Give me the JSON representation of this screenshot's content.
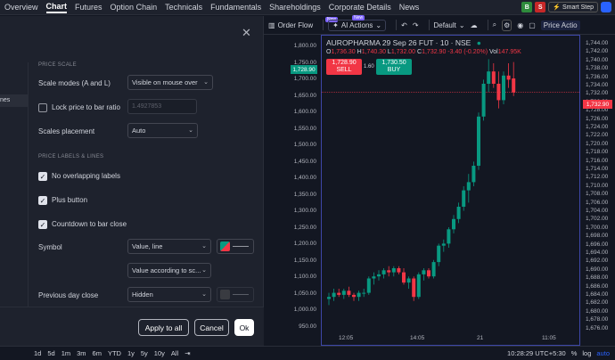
{
  "topnav": {
    "tabs": [
      "Overview",
      "Chart",
      "Futures",
      "Option Chain",
      "Technicals",
      "Fundamentals",
      "Shareholdings",
      "Corporate Details",
      "News"
    ],
    "active": "Chart",
    "buy_label": "B",
    "sell_label": "S",
    "smartstep_label": "Smart Step"
  },
  "toolbar": {
    "order_flow": "Order Flow",
    "ai_actions": "AI Actions",
    "new_badge": "New",
    "layout": "Default",
    "price_action": "Price Actio"
  },
  "dialog": {
    "sidebar_selected": "nes",
    "section_price_scale": "PRICE SCALE",
    "scale_modes_label": "Scale modes (A and L)",
    "scale_modes_value": "Visible on mouse over",
    "lock_ratio_label": "Lock price to bar ratio",
    "lock_ratio_value": "1.4927853",
    "scales_placement_label": "Scales placement",
    "scales_placement_value": "Auto",
    "section_labels": "PRICE LABELS & LINES",
    "no_overlap_label": "No overlapping labels",
    "plus_button_label": "Plus button",
    "countdown_label": "Countdown to bar close",
    "symbol_label": "Symbol",
    "symbol_value": "Value, line",
    "symbol_value2": "Value according to sc...",
    "prev_close_label": "Previous day close",
    "prev_close_value": "Hidden",
    "apply_all": "Apply to all",
    "cancel": "Cancel",
    "ok": "Ok"
  },
  "chart": {
    "symbol_title": "AUROPHARMA 29 Sep 26 FUT · 10 · NSE",
    "ohlc": {
      "o_label": "O",
      "o": "1,736.30",
      "h_label": "H",
      "h": "1,740.30",
      "l_label": "L",
      "l": "1,732.00",
      "c_label": "C",
      "c": "1,732.90",
      "change": "-3.40 (-0.20%)",
      "vol_label": "Vol",
      "vol": "147.95K"
    },
    "sell_price": "1,728.90",
    "sell_label": "SELL",
    "buy_price": "1,730.50",
    "buy_label": "BUY",
    "spread": "1.60",
    "left_price_tag": "1,728.90",
    "right_price_tag": "1,732.90",
    "left_ticks": [
      "1,800.00",
      "1,750.00",
      "1,700.00",
      "1,650.00",
      "1,600.00",
      "1,550.00",
      "1,500.00",
      "1,450.00",
      "1,400.00",
      "1,350.00",
      "1,300.00",
      "1,250.00",
      "1,200.00",
      "1,150.00",
      "1,100.00",
      "1,050.00",
      "1,000.00",
      "950.00"
    ],
    "right_ticks": [
      "1,744.00",
      "1,742.00",
      "1,740.00",
      "1,738.00",
      "1,736.00",
      "1,734.00",
      "1,732.00",
      "1,730.00",
      "1,728.00",
      "1,726.00",
      "1,724.00",
      "1,722.00",
      "1,720.00",
      "1,718.00",
      "1,716.00",
      "1,714.00",
      "1,712.00",
      "1,710.00",
      "1,708.00",
      "1,706.00",
      "1,704.00",
      "1,702.00",
      "1,700.00",
      "1,698.00",
      "1,696.00",
      "1,694.00",
      "1,692.00",
      "1,690.00",
      "1,688.00",
      "1,686.00",
      "1,684.00",
      "1,682.00",
      "1,680.00",
      "1,678.00",
      "1,676.00"
    ],
    "x_ticks": [
      "12:05",
      "14:05",
      "21",
      "11:05"
    ]
  },
  "chart_data": {
    "type": "candlestick",
    "symbol": "AUROPHARMA 29 Sep 26 FUT",
    "interval": "10",
    "candles": [
      {
        "o": 1682.5,
        "h": 1684.0,
        "l": 1681.0,
        "c": 1683.0
      },
      {
        "o": 1683.0,
        "h": 1685.0,
        "l": 1682.0,
        "c": 1684.0
      },
      {
        "o": 1684.0,
        "h": 1685.0,
        "l": 1683.0,
        "c": 1683.5
      },
      {
        "o": 1683.5,
        "h": 1685.0,
        "l": 1682.5,
        "c": 1684.5
      },
      {
        "o": 1684.5,
        "h": 1685.5,
        "l": 1683.0,
        "c": 1683.5
      },
      {
        "o": 1683.5,
        "h": 1684.0,
        "l": 1682.0,
        "c": 1683.0
      },
      {
        "o": 1683.0,
        "h": 1684.5,
        "l": 1682.0,
        "c": 1684.0
      },
      {
        "o": 1684.0,
        "h": 1685.0,
        "l": 1683.0,
        "c": 1684.0
      },
      {
        "o": 1684.0,
        "h": 1688.0,
        "l": 1683.5,
        "c": 1687.5
      },
      {
        "o": 1687.5,
        "h": 1689.0,
        "l": 1686.0,
        "c": 1688.0
      },
      {
        "o": 1688.0,
        "h": 1689.5,
        "l": 1687.0,
        "c": 1688.5
      },
      {
        "o": 1688.5,
        "h": 1690.0,
        "l": 1687.5,
        "c": 1689.5
      },
      {
        "o": 1689.5,
        "h": 1690.5,
        "l": 1688.0,
        "c": 1689.0
      },
      {
        "o": 1689.0,
        "h": 1690.5,
        "l": 1688.0,
        "c": 1690.0
      },
      {
        "o": 1690.0,
        "h": 1690.5,
        "l": 1688.5,
        "c": 1689.0
      },
      {
        "o": 1689.0,
        "h": 1690.0,
        "l": 1686.0,
        "c": 1686.5
      },
      {
        "o": 1686.5,
        "h": 1688.0,
        "l": 1685.0,
        "c": 1687.5
      },
      {
        "o": 1687.5,
        "h": 1688.0,
        "l": 1682.0,
        "c": 1683.0
      },
      {
        "o": 1683.0,
        "h": 1689.0,
        "l": 1682.5,
        "c": 1688.5
      },
      {
        "o": 1688.5,
        "h": 1690.0,
        "l": 1687.0,
        "c": 1689.5
      },
      {
        "o": 1689.5,
        "h": 1690.0,
        "l": 1687.5,
        "c": 1688.0
      },
      {
        "o": 1688.0,
        "h": 1692.0,
        "l": 1687.5,
        "c": 1691.5
      },
      {
        "o": 1691.5,
        "h": 1696.0,
        "l": 1690.5,
        "c": 1695.5
      },
      {
        "o": 1695.5,
        "h": 1697.0,
        "l": 1694.0,
        "c": 1696.0
      },
      {
        "o": 1696.0,
        "h": 1700.0,
        "l": 1695.0,
        "c": 1699.5
      },
      {
        "o": 1699.5,
        "h": 1703.0,
        "l": 1698.5,
        "c": 1702.0
      },
      {
        "o": 1702.0,
        "h": 1706.0,
        "l": 1701.0,
        "c": 1705.0
      },
      {
        "o": 1705.0,
        "h": 1710.0,
        "l": 1704.0,
        "c": 1709.0
      },
      {
        "o": 1709.0,
        "h": 1713.0,
        "l": 1706.0,
        "c": 1711.0
      },
      {
        "o": 1711.0,
        "h": 1716.0,
        "l": 1710.0,
        "c": 1715.0
      },
      {
        "o": 1715.0,
        "h": 1728.0,
        "l": 1714.0,
        "c": 1727.0
      },
      {
        "o": 1727.0,
        "h": 1736.0,
        "l": 1726.0,
        "c": 1735.0
      },
      {
        "o": 1735.0,
        "h": 1741.0,
        "l": 1733.0,
        "c": 1738.0
      },
      {
        "o": 1738.0,
        "h": 1740.0,
        "l": 1734.0,
        "c": 1735.0
      },
      {
        "o": 1735.0,
        "h": 1738.0,
        "l": 1729.0,
        "c": 1731.0
      },
      {
        "o": 1731.0,
        "h": 1738.0,
        "l": 1730.0,
        "c": 1737.0
      },
      {
        "o": 1737.0,
        "h": 1740.0,
        "l": 1734.0,
        "c": 1736.0
      },
      {
        "o": 1736.3,
        "h": 1740.3,
        "l": 1732.0,
        "c": 1732.9
      }
    ],
    "y_range": [
      1675,
      1745
    ],
    "x_ticks": [
      "12:05",
      "14:05",
      "21",
      "11:05"
    ]
  },
  "bottombar": {
    "ranges": [
      "1d",
      "5d",
      "1m",
      "3m",
      "6m",
      "YTD",
      "1y",
      "5y",
      "10y",
      "All"
    ],
    "time": "10:28:29 UTC+5:30",
    "percent": "%",
    "log": "log",
    "auto": "auto"
  },
  "colors": {
    "up": "#089981",
    "down": "#f23645",
    "accent": "#2962ff"
  }
}
